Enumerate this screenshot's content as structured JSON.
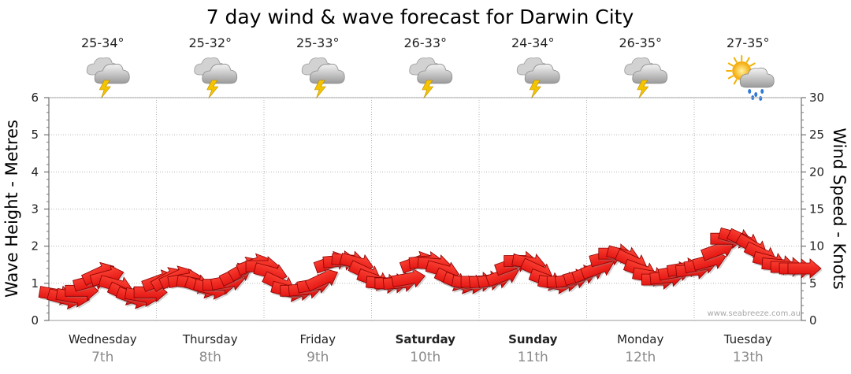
{
  "chart_data": {
    "type": "line",
    "title": "7 day wind & wave forecast for Darwin City",
    "ylabel_left": "Wave Height - Metres",
    "ylabel_right": "Wind Speed - Knots",
    "ylim_left": [
      0,
      6
    ],
    "ylim_right": [
      0,
      30
    ],
    "yticks_left": [
      "0",
      "1",
      "2",
      "3",
      "4",
      "5",
      "6"
    ],
    "yticks_right": [
      "0",
      "5",
      "10",
      "15",
      "20",
      "25",
      "30"
    ],
    "grid": true,
    "watermark": "www.seabreeze.com.au",
    "days": [
      {
        "day": "Wednesday",
        "date": "7th",
        "temp": "25-34°",
        "icon": "storm-cloud-icon",
        "bold": false
      },
      {
        "day": "Thursday",
        "date": "8th",
        "temp": "25-32°",
        "icon": "storm-cloud-icon",
        "bold": false
      },
      {
        "day": "Friday",
        "date": "9th",
        "temp": "25-33°",
        "icon": "storm-cloud-icon",
        "bold": false
      },
      {
        "day": "Saturday",
        "date": "10th",
        "temp": "26-33°",
        "icon": "storm-cloud-icon",
        "bold": true
      },
      {
        "day": "Sunday",
        "date": "11th",
        "temp": "24-34°",
        "icon": "storm-cloud-icon",
        "bold": true
      },
      {
        "day": "Monday",
        "date": "12th",
        "temp": "26-35°",
        "icon": "storm-cloud-icon",
        "bold": false
      },
      {
        "day": "Tuesday",
        "date": "13th",
        "temp": "27-35°",
        "icon": "sun-rain-cloud-icon",
        "bold": false
      }
    ],
    "wind_series": {
      "name": "Wind Speed - Knots",
      "color": "#ee1111",
      "x_days": [
        0.0,
        0.08,
        0.16,
        0.24,
        0.32,
        0.4,
        0.48,
        0.56,
        0.64,
        0.72,
        0.8,
        0.88,
        0.96,
        1.04,
        1.12,
        1.2,
        1.28,
        1.36,
        1.44,
        1.52,
        1.6,
        1.68,
        1.76,
        1.84,
        1.92,
        2.0,
        2.08,
        2.16,
        2.24,
        2.32,
        2.4,
        2.48,
        2.56,
        2.64,
        2.72,
        2.8,
        2.88,
        2.96,
        3.04,
        3.12,
        3.2,
        3.28,
        3.36,
        3.44,
        3.52,
        3.6,
        3.68,
        3.76,
        3.84,
        3.92,
        4.0,
        4.08,
        4.16,
        4.24,
        4.32,
        4.4,
        4.48,
        4.56,
        4.64,
        4.72,
        4.8,
        4.88,
        4.96,
        5.04,
        5.12,
        5.2,
        5.28,
        5.36,
        5.44,
        5.52,
        5.6,
        5.68,
        5.76,
        5.84,
        5.92,
        6.0,
        6.08,
        6.16,
        6.24,
        6.32,
        6.4,
        6.48,
        6.56,
        6.64,
        6.72,
        6.8,
        6.88,
        6.96
      ],
      "values": [
        3.5,
        3.0,
        3.2,
        4.0,
        5.2,
        6.3,
        5.9,
        4.8,
        3.6,
        3.1,
        3.3,
        3.8,
        5.3,
        5.6,
        5.8,
        5.5,
        5.0,
        4.5,
        4.3,
        4.8,
        5.2,
        6.2,
        7.0,
        7.5,
        7.3,
        6.5,
        5.0,
        4.0,
        4.0,
        4.2,
        4.8,
        5.5,
        7.8,
        8.0,
        8.1,
        7.8,
        6.5,
        5.5,
        5.0,
        5.0,
        5.1,
        5.6,
        7.8,
        7.9,
        7.6,
        6.8,
        5.5,
        5.1,
        5.0,
        5.2,
        5.3,
        5.5,
        6.0,
        7.5,
        8.0,
        7.8,
        6.8,
        5.5,
        5.0,
        5.2,
        5.5,
        6.0,
        6.5,
        7.0,
        8.5,
        9.0,
        8.8,
        8.0,
        6.8,
        6.0,
        5.5,
        5.8,
        6.5,
        7.0,
        6.8,
        7.5,
        8.0,
        9.5,
        11.0,
        11.2,
        10.8,
        10.0,
        9.0,
        8.0,
        7.5,
        7.2,
        7.0,
        7.0
      ],
      "angles_deg": [
        10,
        15,
        10,
        0,
        -15,
        -25,
        -15,
        15,
        25,
        20,
        10,
        0,
        -20,
        -30,
        -25,
        -10,
        10,
        20,
        15,
        0,
        -10,
        -25,
        -30,
        -20,
        0,
        15,
        25,
        15,
        0,
        -5,
        -10,
        -25,
        -20,
        -5,
        5,
        15,
        25,
        20,
        5,
        0,
        -5,
        -10,
        -20,
        -5,
        5,
        15,
        25,
        20,
        10,
        0,
        -5,
        -10,
        -20,
        -20,
        0,
        10,
        25,
        20,
        10,
        0,
        -10,
        -15,
        -20,
        -20,
        -15,
        0,
        15,
        25,
        20,
        10,
        0,
        -5,
        -10,
        -10,
        -5,
        -10,
        -15,
        -20,
        0,
        15,
        25,
        30,
        25,
        15,
        5,
        0,
        0,
        0
      ]
    }
  }
}
